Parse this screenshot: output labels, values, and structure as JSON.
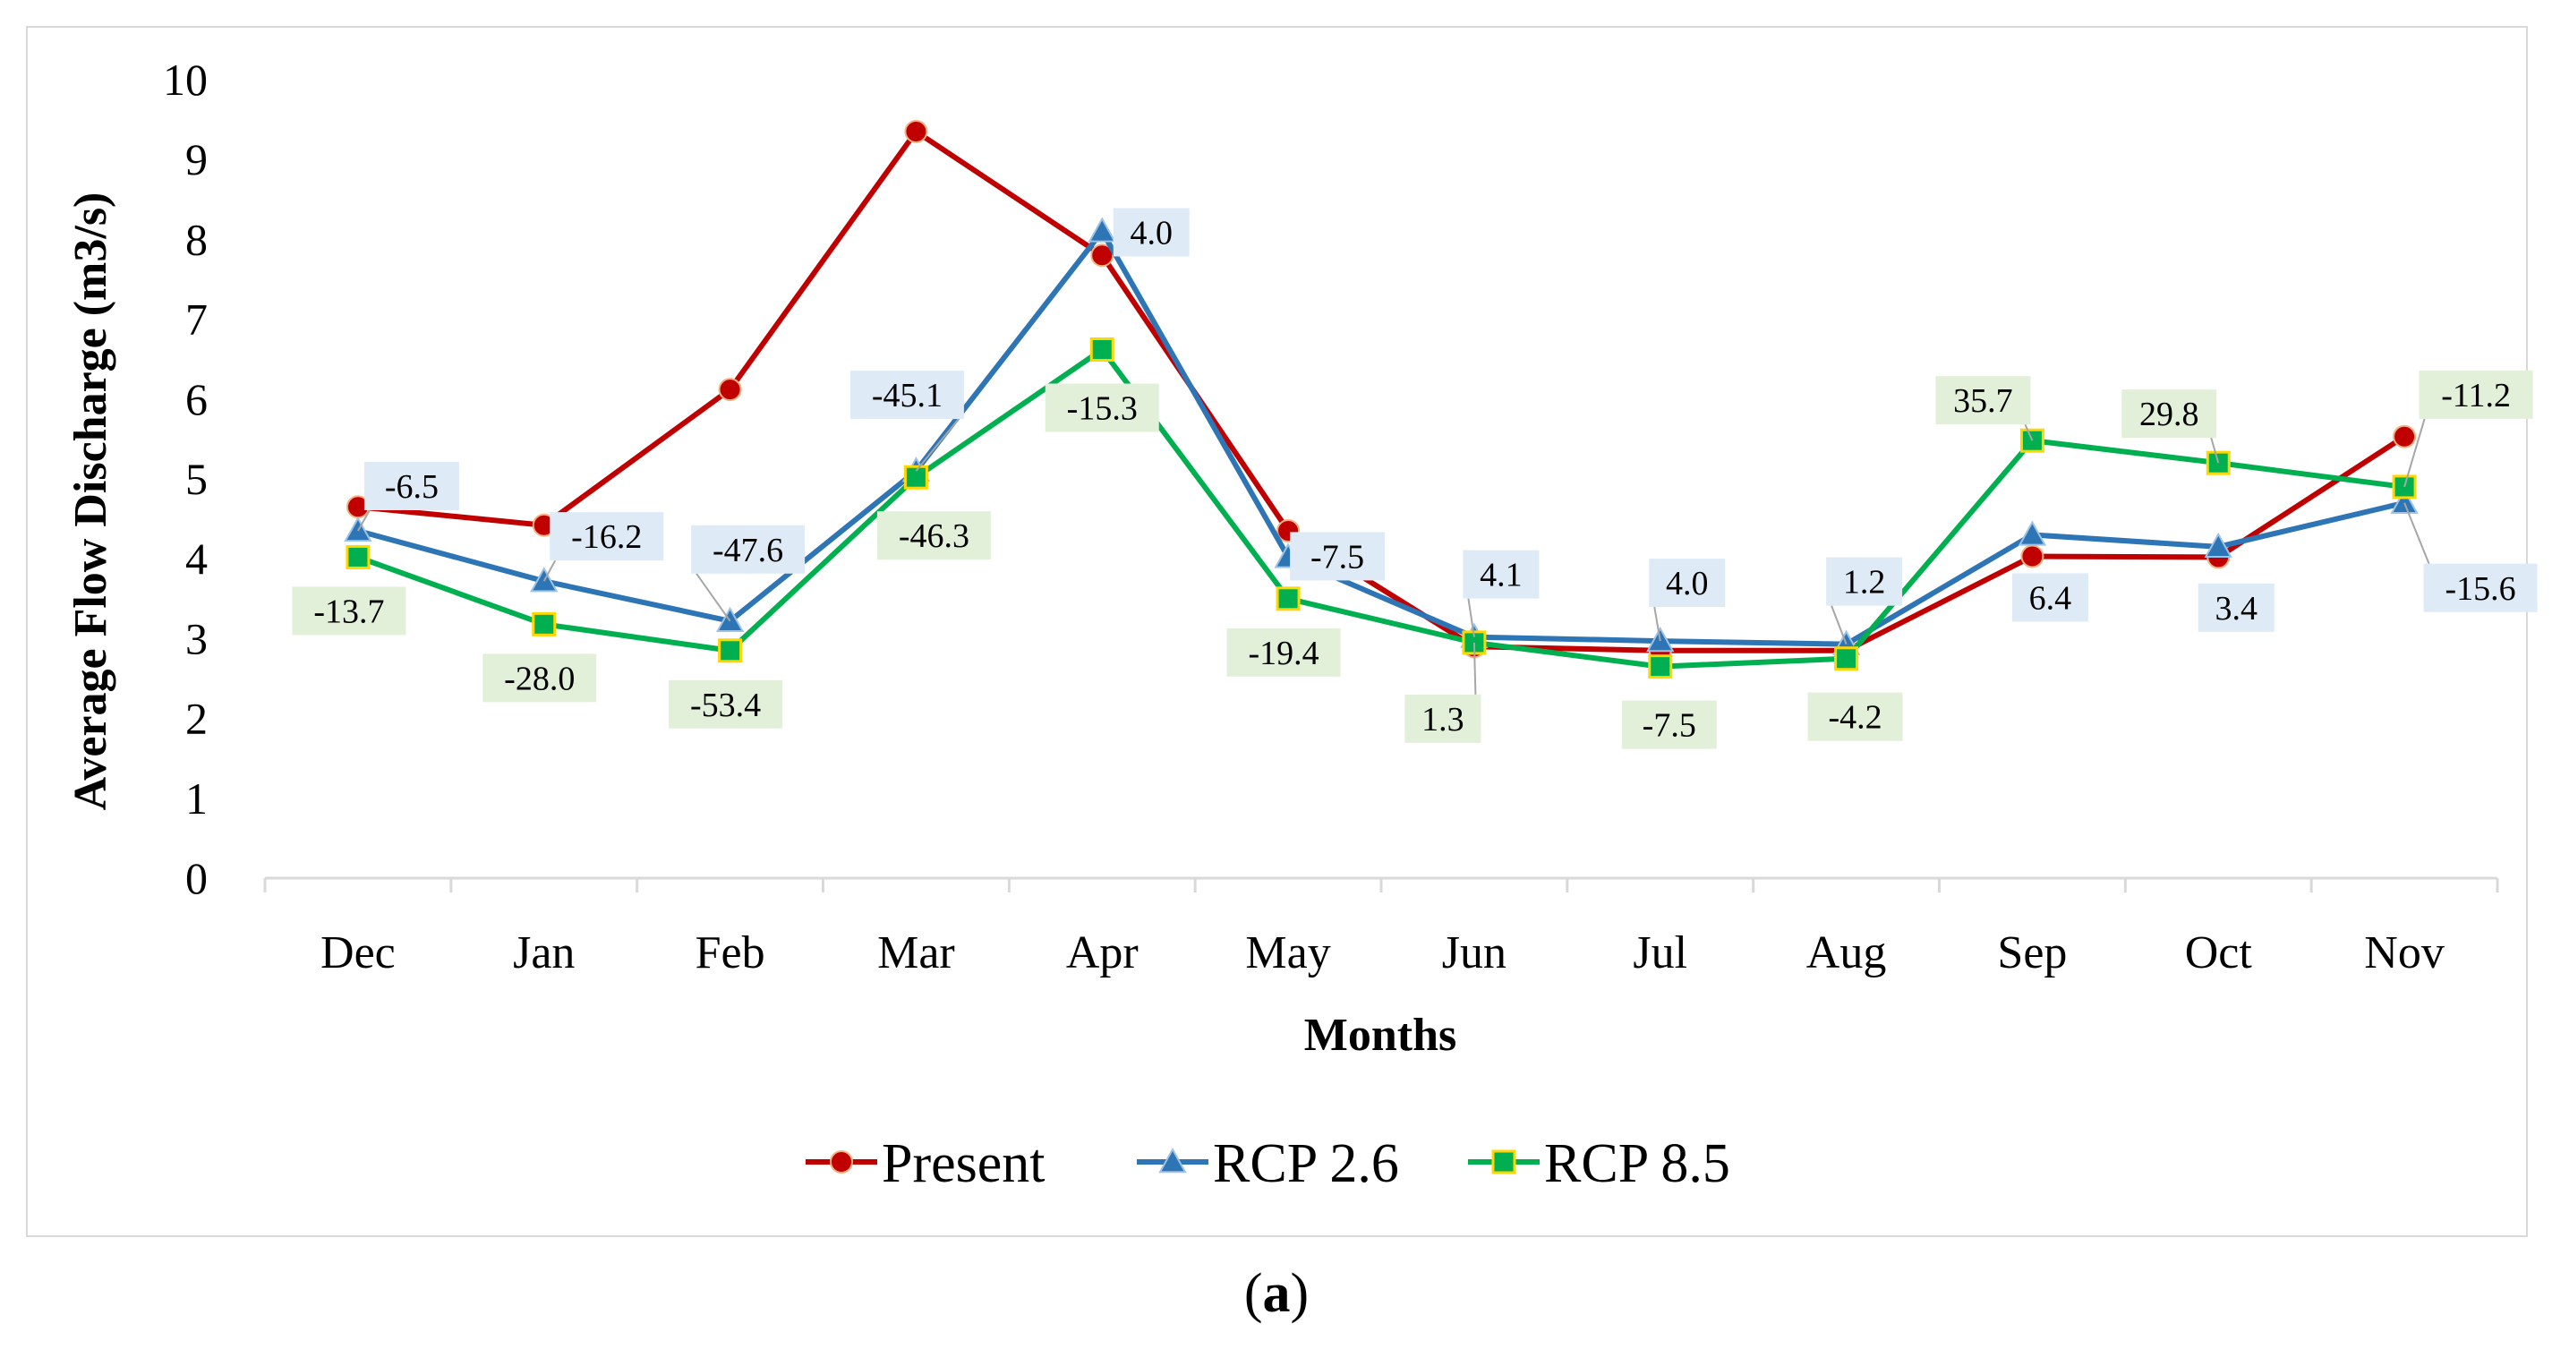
{
  "chart_data": {
    "type": "line",
    "title": "",
    "xlabel": "Months",
    "ylabel": "Average Flow Discharge (m3/s)",
    "ylim": [
      0,
      10
    ],
    "yticks": [
      "0",
      "1",
      "2",
      "3",
      "4",
      "5",
      "6",
      "7",
      "8",
      "9",
      "10"
    ],
    "categories": [
      "Dec",
      "Jan",
      "Feb",
      "Mar",
      "Apr",
      "May",
      "Jun",
      "Jul",
      "Aug",
      "Sep",
      "Oct",
      "Nov"
    ],
    "legend_position": "bottom",
    "series": [
      {
        "name": "Present",
        "color": "#c00000",
        "marker": "circle",
        "values": [
          4.65,
          4.42,
          6.12,
          9.35,
          7.8,
          4.35,
          2.9,
          2.85,
          2.85,
          4.03,
          4.02,
          5.53
        ],
        "labels": []
      },
      {
        "name": "RCP 2.6",
        "color": "#2e75b6",
        "marker": "triangle",
        "values": [
          4.35,
          3.72,
          3.22,
          5.1,
          8.1,
          4.02,
          3.02,
          2.97,
          2.93,
          4.3,
          4.15,
          4.7
        ],
        "labels": [
          "-6.5",
          "-16.2",
          "-47.6",
          "-45.1",
          "4.0",
          "-7.5",
          "4.1",
          "4.0",
          "1.2",
          "6.4",
          "3.4",
          "-15.6"
        ]
      },
      {
        "name": "RCP 8.5",
        "color": "#00b050",
        "marker": "square",
        "values": [
          4.02,
          3.18,
          2.85,
          5.02,
          6.62,
          3.5,
          2.95,
          2.65,
          2.75,
          5.48,
          5.2,
          4.9
        ],
        "labels": [
          "-13.7",
          "-28.0",
          "-53.4",
          "-46.3",
          "-15.3",
          "-19.4",
          "1.3",
          "-7.5",
          "-4.2",
          "35.7",
          "29.8",
          "-11.2"
        ]
      }
    ]
  },
  "caption": {
    "open": "(",
    "letter": "a",
    "close": ")"
  }
}
